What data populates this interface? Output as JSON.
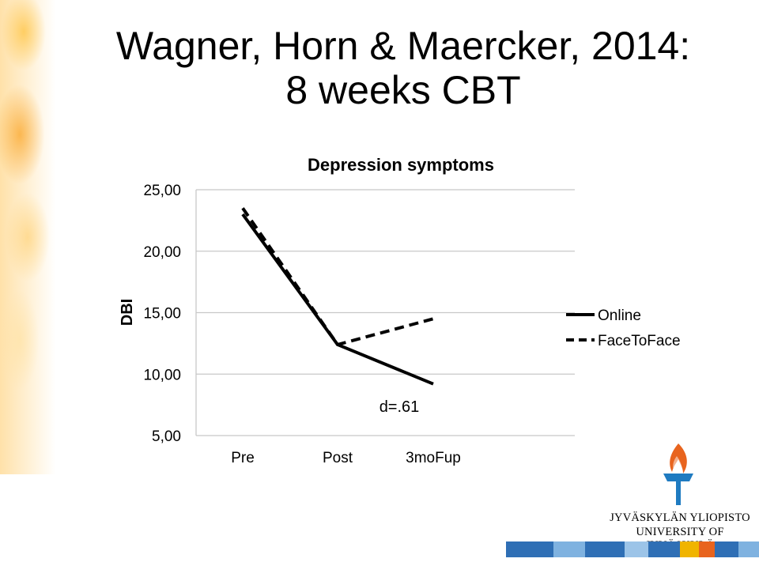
{
  "slide": {
    "title": "Wagner, Horn & Maercker, 2014: 8 weeks CBT"
  },
  "chart_data": {
    "type": "line",
    "title": "Depression symptoms",
    "ylabel": "DBI",
    "xlabel": "",
    "categories": [
      "Pre",
      "Post",
      "3moFup"
    ],
    "ylim": [
      5,
      25
    ],
    "yticks": [
      "5,00",
      "10,00",
      "15,00",
      "20,00",
      "25,00"
    ],
    "ytick_values": [
      5,
      10,
      15,
      20,
      25
    ],
    "grid": true,
    "legend_position": "right",
    "series": [
      {
        "name": "Online",
        "values": [
          23.0,
          12.4,
          9.2
        ],
        "style": "solid",
        "color": "#000000"
      },
      {
        "name": "FaceToFace",
        "values": [
          23.5,
          12.4,
          14.5
        ],
        "style": "dashed",
        "color": "#000000"
      }
    ],
    "annotation": "d=.61"
  },
  "logo": {
    "line1": "JYVÄSKYLÄN YLIOPISTO",
    "line2": "UNIVERSITY OF JYVÄSKYLÄ",
    "flame_color": "#e8641e",
    "torch_color": "#1f7bc1"
  },
  "strip_colors": [
    "#2f6fb5",
    "#7fb2e0",
    "#2f6fb5",
    "#9cc4e8",
    "#2f6fb5",
    "#f0b400",
    "#e8641e",
    "#2f6fb5",
    "#7fb2e0"
  ]
}
